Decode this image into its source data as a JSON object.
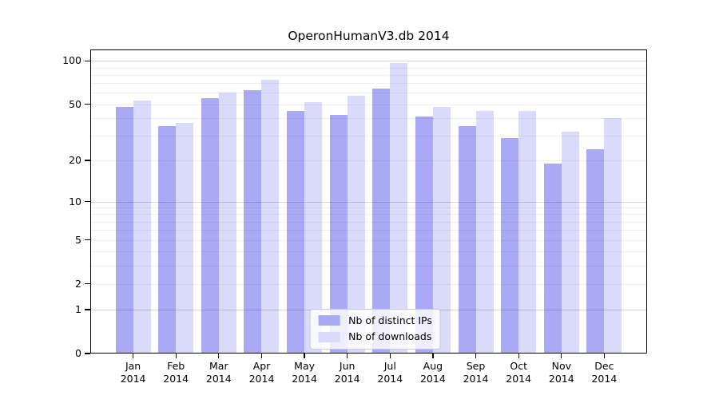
{
  "chart_data": {
    "type": "bar",
    "title": "OperonHumanV3.db 2014",
    "categories": [
      "Jan",
      "Feb",
      "Mar",
      "Apr",
      "May",
      "Jun",
      "Jul",
      "Aug",
      "Sep",
      "Oct",
      "Nov",
      "Dec"
    ],
    "year_label": "2014",
    "series": [
      {
        "name": "Nb of distinct IPs",
        "color": "#a9a9f6",
        "values": [
          48,
          35,
          55,
          63,
          45,
          42,
          64,
          41,
          35,
          29,
          19,
          24
        ]
      },
      {
        "name": "Nb of downloads",
        "color": "#dadafb",
        "values": [
          53,
          37,
          60,
          74,
          52,
          57,
          97,
          48,
          45,
          45,
          32,
          40
        ]
      }
    ],
    "yscale": "log1p",
    "ylim": [
      0,
      120
    ],
    "yticks": [
      0,
      1,
      2,
      5,
      10,
      20,
      50,
      100
    ],
    "grid_major": [
      1,
      10,
      100
    ],
    "grid_minor": [
      2,
      3,
      4,
      5,
      6,
      7,
      8,
      9,
      20,
      30,
      40,
      50,
      60,
      70,
      80,
      90
    ],
    "legend_position": "lower center",
    "axis_color": "#000000",
    "background_color": "#ffffff"
  }
}
